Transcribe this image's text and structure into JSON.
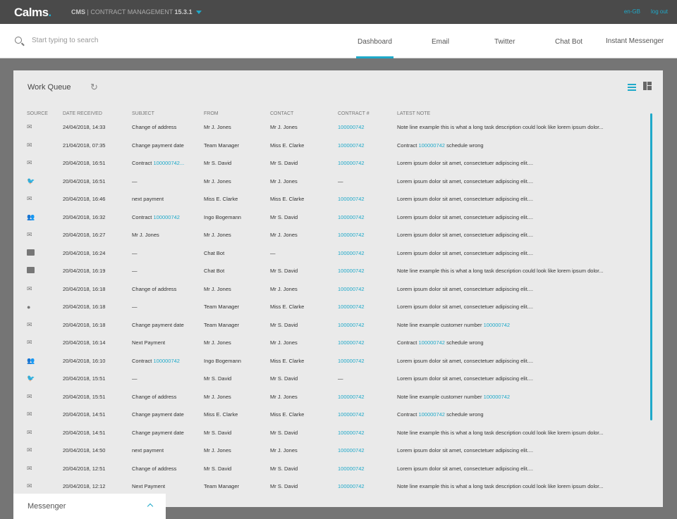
{
  "header": {
    "logo": "Calms",
    "app_prefix": "CMS",
    "app_name": "| CONTRACT MANAGEMENT",
    "version": "15.3.1",
    "locale": "en-GB",
    "logout": "log out"
  },
  "search": {
    "placeholder": "Start typing to search"
  },
  "tabs": [
    {
      "label": "Dashboard",
      "active": true
    },
    {
      "label": "Email"
    },
    {
      "label": "Twitter"
    },
    {
      "label": "Chat Bot"
    },
    {
      "label": "Instant Messenger"
    }
  ],
  "accent": "#1fa9c9",
  "work_queue": {
    "title": "Work Queue",
    "columns": [
      "SOURCE",
      "DATE RECEIVED",
      "SUBJECT",
      "FROM",
      "CONTACT",
      "CONTRACT #",
      "LATEST NOTE"
    ],
    "rows": [
      {
        "source": "email-icon",
        "date": "24/04/2018, 14:33",
        "subject": "Change of address",
        "subject_link": "",
        "from": "Mr J. Jones",
        "contact": "Mr J. Jones",
        "contract": "100000742",
        "note": "Note line example this is what a long task description could look like lorem ipsum dolor...",
        "note_link": "",
        "note_suffix": ""
      },
      {
        "source": "email-icon",
        "date": "21/04/2018, 07:35",
        "subject": "Change payment date",
        "subject_link": "",
        "from": "Team Manager",
        "contact": "Miss E. Clarke",
        "contract": "100000742",
        "note": "Contract ",
        "note_link": "100000742",
        "note_suffix": " schedule wrong"
      },
      {
        "source": "email-icon",
        "date": "20/04/2018, 16:51",
        "subject": "Contract ",
        "subject_link": "100000742...",
        "from": "Mr S. David",
        "contact": "Mr S. David",
        "contract": "100000742",
        "note": "Lorem ipsum dolor sit amet, consectetuer adipiscing elit....",
        "note_link": "",
        "note_suffix": ""
      },
      {
        "source": "twitter-icon",
        "date": "20/04/2018, 16:51",
        "subject": "—",
        "subject_link": "",
        "from": "Mr J. Jones",
        "contact": "Mr J. Jones",
        "contract": "—",
        "note": "Lorem ipsum dolor sit amet, consectetuer adipiscing elit....",
        "note_link": "",
        "note_suffix": ""
      },
      {
        "source": "email-icon",
        "date": "20/04/2018, 16:46",
        "subject": "next payment",
        "subject_link": "",
        "from": "Miss E. Clarke",
        "contact": "Miss E. Clarke",
        "contract": "100000742",
        "note": "Lorem ipsum dolor sit amet, consectetuer adipiscing elit....",
        "note_link": "",
        "note_suffix": ""
      },
      {
        "source": "group-icon",
        "date": "20/04/2018, 16:32",
        "subject": "Contract ",
        "subject_link": "100000742",
        "from": "Ingo Bogemann",
        "contact": "Mr S. David",
        "contract": "100000742",
        "note": "Lorem ipsum dolor sit amet, consectetuer adipiscing elit....",
        "note_link": "",
        "note_suffix": ""
      },
      {
        "source": "email-icon",
        "date": "20/04/2018, 16:27",
        "subject": "Mr J. Jones",
        "subject_link": "",
        "from": "Mr J. Jones",
        "contact": "Mr J. Jones",
        "contract": "100000742",
        "note": "Lorem ipsum dolor sit amet, consectetuer adipiscing elit....",
        "note_link": "",
        "note_suffix": ""
      },
      {
        "source": "chat-icon",
        "date": "20/04/2018, 16:24",
        "subject": "—",
        "subject_link": "",
        "from": "Chat Bot",
        "contact": "—",
        "contract": "100000742",
        "note": "Lorem ipsum dolor sit amet, consectetuer adipiscing elit....",
        "note_link": "",
        "note_suffix": ""
      },
      {
        "source": "chat-icon",
        "date": "20/04/2018, 16:19",
        "subject": "—",
        "subject_link": "",
        "from": "Chat Bot",
        "contact": "Mr S. David",
        "contract": "100000742",
        "note": "Note line example this is what a long task description could look like lorem ipsum dolor...",
        "note_link": "",
        "note_suffix": ""
      },
      {
        "source": "email-icon",
        "date": "20/04/2018, 16:18",
        "subject": "Change of address",
        "subject_link": "",
        "from": "Mr J. Jones",
        "contact": "Mr J. Jones",
        "contract": "100000742",
        "note": "Lorem ipsum dolor sit amet, consectetuer adipiscing elit....",
        "note_link": "",
        "note_suffix": ""
      },
      {
        "source": "person-icon",
        "date": "20/04/2018, 16:18",
        "subject": "—",
        "subject_link": "",
        "from": "Team Manager",
        "contact": "Miss E. Clarke",
        "contract": "100000742",
        "note": "Lorem ipsum dolor sit amet, consectetuer adipiscing elit....",
        "note_link": "",
        "note_suffix": ""
      },
      {
        "source": "email-icon",
        "date": "20/04/2018, 16:18",
        "subject": "Change payment date",
        "subject_link": "",
        "from": "Team Manager",
        "contact": "Mr S. David",
        "contract": "100000742",
        "note": "Note line example customer number ",
        "note_link": "100000742",
        "note_suffix": ""
      },
      {
        "source": "email-icon",
        "date": "20/04/2018, 16:14",
        "subject": "Next Payment",
        "subject_link": "",
        "from": "Mr J. Jones",
        "contact": "Mr J. Jones",
        "contract": "100000742",
        "note": "Contract ",
        "note_link": "100000742",
        "note_suffix": " schedule wrong"
      },
      {
        "source": "group-icon",
        "date": "20/04/2018, 16:10",
        "subject": "Contract ",
        "subject_link": "100000742",
        "from": "Ingo Bogemann",
        "contact": "Miss E. Clarke",
        "contract": "100000742",
        "note": "Lorem ipsum dolor sit amet, consectetuer adipiscing elit....",
        "note_link": "",
        "note_suffix": ""
      },
      {
        "source": "twitter-icon",
        "date": "20/04/2018, 15:51",
        "subject": "—",
        "subject_link": "",
        "from": "Mr S. David",
        "contact": "Mr S. David",
        "contract": "—",
        "note": "Lorem ipsum dolor sit amet, consectetuer adipiscing elit....",
        "note_link": "",
        "note_suffix": ""
      },
      {
        "source": "email-icon",
        "date": "20/04/2018, 15:51",
        "subject": "Change of address",
        "subject_link": "",
        "from": "Mr J. Jones",
        "contact": "Mr J. Jones",
        "contract": "100000742",
        "note": "Note line example customer number ",
        "note_link": "100000742",
        "note_suffix": ""
      },
      {
        "source": "email-icon",
        "date": "20/04/2018, 14:51",
        "subject": "Change payment date",
        "subject_link": "",
        "from": "Miss E. Clarke",
        "contact": "Miss E. Clarke",
        "contract": "100000742",
        "note": "Contract ",
        "note_link": "100000742",
        "note_suffix": " schedule wrong"
      },
      {
        "source": "email-icon",
        "date": "20/04/2018, 14:51",
        "subject": "Change payment date",
        "subject_link": "",
        "from": "Mr S. David",
        "contact": "Mr S. David",
        "contract": "100000742",
        "note": "Note line example this is what a long task description could look like lorem ipsum dolor...",
        "note_link": "",
        "note_suffix": ""
      },
      {
        "source": "email-icon",
        "date": "20/04/2018, 14:50",
        "subject": "next payment",
        "subject_link": "",
        "from": "Mr J. Jones",
        "contact": "Mr J. Jones",
        "contract": "100000742",
        "note": "Lorem ipsum dolor sit amet, consectetuer adipiscing elit....",
        "note_link": "",
        "note_suffix": ""
      },
      {
        "source": "email-icon",
        "date": "20/04/2018, 12:51",
        "subject": "Change of address",
        "subject_link": "",
        "from": "Mr S. David",
        "contact": "Mr S. David",
        "contract": "100000742",
        "note": "Lorem ipsum dolor sit amet, consectetuer adipiscing elit....",
        "note_link": "",
        "note_suffix": ""
      },
      {
        "source": "email-icon",
        "date": "20/04/2018, 12:12",
        "subject": "Next Payment",
        "subject_link": "",
        "from": "Team Manager",
        "contact": "Mr S. David",
        "contract": "100000742",
        "note": "Note line example this is what a long task description could look like lorem ipsum dolor...",
        "note_link": "",
        "note_suffix": ""
      }
    ]
  },
  "messenger": {
    "label": "Messenger"
  }
}
